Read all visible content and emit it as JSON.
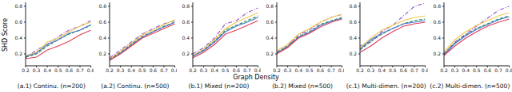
{
  "xlabel": "Graph Density",
  "ylabel": "SHD Score",
  "chart_data": [
    {
      "type": "line",
      "title": "(a.1) Continu. (n=200)",
      "x": [
        0.2,
        0.3,
        0.4,
        0.5,
        0.6,
        0.7,
        0.8
      ],
      "xlim": [
        0.2,
        0.8
      ],
      "xticks": [
        0.2,
        0.3,
        0.4,
        0.5,
        0.6,
        0.7,
        0.8
      ],
      "ylim": [
        0.05,
        0.85
      ],
      "yticks": [
        0.2,
        0.4,
        0.6,
        0.8
      ],
      "grid": false,
      "series": [
        {
          "color": "#9b59d0",
          "line_style": "dashdot",
          "values": [
            0.15,
            0.25,
            0.32,
            0.42,
            0.5,
            0.55,
            0.62
          ]
        },
        {
          "color": "#f2c94c",
          "line_style": "solid",
          "values": [
            0.18,
            0.22,
            0.35,
            0.4,
            0.48,
            0.55,
            0.6
          ]
        },
        {
          "color": "#2e8b57",
          "line_style": "dashed",
          "values": [
            0.16,
            0.2,
            0.3,
            0.38,
            0.45,
            0.5,
            0.56
          ]
        },
        {
          "color": "#4a7bd0",
          "line_style": "solid",
          "values": [
            0.17,
            0.21,
            0.32,
            0.38,
            0.46,
            0.5,
            0.57
          ]
        },
        {
          "color": "#e0405a",
          "line_style": "solid",
          "values": [
            0.14,
            0.16,
            0.25,
            0.3,
            0.36,
            0.44,
            0.5
          ]
        }
      ]
    },
    {
      "type": "line",
      "title": "(a.2) Continu. (n=500)",
      "x": [
        0.2,
        0.3,
        0.4,
        0.5,
        0.6,
        0.7,
        0.8
      ],
      "xlim": [
        0.2,
        0.8
      ],
      "xticks": [
        0.2,
        0.3,
        0.4,
        0.5,
        0.6,
        0.7,
        0.8
      ],
      "ylim": [
        0.05,
        0.85
      ],
      "yticks": [
        0.2,
        0.4,
        0.6,
        0.8
      ],
      "grid": false,
      "series": [
        {
          "color": "#9b59d0",
          "line_style": "dashdot",
          "values": [
            0.15,
            0.25,
            0.35,
            0.45,
            0.52,
            0.58,
            0.62
          ]
        },
        {
          "color": "#f2c94c",
          "line_style": "solid",
          "values": [
            0.14,
            0.23,
            0.33,
            0.44,
            0.5,
            0.57,
            0.63
          ]
        },
        {
          "color": "#2e8b57",
          "line_style": "dashed",
          "values": [
            0.13,
            0.22,
            0.32,
            0.42,
            0.48,
            0.55,
            0.6
          ]
        },
        {
          "color": "#4a7bd0",
          "line_style": "solid",
          "values": [
            0.12,
            0.21,
            0.31,
            0.41,
            0.48,
            0.54,
            0.6
          ]
        },
        {
          "color": "#e0405a",
          "line_style": "solid",
          "values": [
            0.12,
            0.2,
            0.3,
            0.4,
            0.46,
            0.52,
            0.58
          ]
        }
      ]
    },
    {
      "type": "line",
      "title": "(b.1) Mixed (n=200)",
      "x": [
        0.2,
        0.3,
        0.4,
        0.5,
        0.6,
        0.7,
        0.8
      ],
      "xlim": [
        0.2,
        0.8
      ],
      "xticks": [
        0.2,
        0.3,
        0.4,
        0.5,
        0.6,
        0.7,
        0.8
      ],
      "ylim": [
        0.05,
        0.85
      ],
      "yticks": [
        0.2,
        0.4,
        0.6,
        0.8
      ],
      "grid": false,
      "series": [
        {
          "color": "#9b59d0",
          "line_style": "dashdot",
          "values": [
            0.2,
            0.28,
            0.4,
            0.58,
            0.62,
            0.72,
            0.78
          ]
        },
        {
          "color": "#f2c94c",
          "line_style": "solid",
          "values": [
            0.18,
            0.26,
            0.38,
            0.52,
            0.6,
            0.66,
            0.72
          ]
        },
        {
          "color": "#2e8b57",
          "line_style": "dashed",
          "values": [
            0.17,
            0.25,
            0.36,
            0.5,
            0.56,
            0.62,
            0.68
          ]
        },
        {
          "color": "#4a7bd0",
          "line_style": "solid",
          "values": [
            0.17,
            0.24,
            0.35,
            0.48,
            0.55,
            0.6,
            0.66
          ]
        },
        {
          "color": "#e0405a",
          "line_style": "solid",
          "values": [
            0.15,
            0.22,
            0.32,
            0.45,
            0.5,
            0.56,
            0.62
          ]
        }
      ]
    },
    {
      "type": "line",
      "title": "(b.2) Mixed (n=500)",
      "x": [
        0.2,
        0.3,
        0.4,
        0.5,
        0.6,
        0.7,
        0.8
      ],
      "xlim": [
        0.2,
        0.8
      ],
      "xticks": [
        0.2,
        0.3,
        0.4,
        0.5,
        0.6,
        0.7,
        0.8
      ],
      "ylim": [
        0.05,
        0.85
      ],
      "yticks": [
        0.2,
        0.4,
        0.6,
        0.8
      ],
      "grid": false,
      "series": [
        {
          "color": "#9b59d0",
          "line_style": "dashdot",
          "values": [
            0.22,
            0.3,
            0.44,
            0.5,
            0.6,
            0.66,
            0.7
          ]
        },
        {
          "color": "#f2c94c",
          "line_style": "solid",
          "values": [
            0.24,
            0.32,
            0.45,
            0.52,
            0.6,
            0.66,
            0.7
          ]
        },
        {
          "color": "#2e8b57",
          "line_style": "dashed",
          "values": [
            0.22,
            0.3,
            0.42,
            0.48,
            0.57,
            0.62,
            0.66
          ]
        },
        {
          "color": "#4a7bd0",
          "line_style": "solid",
          "values": [
            0.21,
            0.29,
            0.41,
            0.47,
            0.56,
            0.61,
            0.65
          ]
        },
        {
          "color": "#e0405a",
          "line_style": "solid",
          "values": [
            0.2,
            0.28,
            0.4,
            0.46,
            0.54,
            0.6,
            0.64
          ]
        }
      ]
    },
    {
      "type": "line",
      "title": "(c.1) Multi-dimen. (n=200)",
      "x": [
        0.2,
        0.3,
        0.4,
        0.5,
        0.6,
        0.7,
        0.8
      ],
      "xlim": [
        0.2,
        0.8
      ],
      "xticks": [
        0.2,
        0.3,
        0.4,
        0.5,
        0.6,
        0.7,
        0.8
      ],
      "ylim": [
        0.05,
        0.85
      ],
      "yticks": [
        0.2,
        0.4,
        0.6,
        0.8
      ],
      "grid": false,
      "series": [
        {
          "color": "#9b59d0",
          "line_style": "dashdot",
          "values": [
            0.3,
            0.35,
            0.48,
            0.56,
            0.68,
            0.8,
            0.84
          ]
        },
        {
          "color": "#f2c94c",
          "line_style": "solid",
          "values": [
            0.28,
            0.4,
            0.5,
            0.56,
            0.62,
            0.66,
            0.68
          ]
        },
        {
          "color": "#2e8b57",
          "line_style": "dashed",
          "values": [
            0.25,
            0.36,
            0.45,
            0.52,
            0.58,
            0.62,
            0.64
          ]
        },
        {
          "color": "#4a7bd0",
          "line_style": "solid",
          "values": [
            0.26,
            0.38,
            0.46,
            0.52,
            0.58,
            0.6,
            0.62
          ]
        },
        {
          "color": "#e0405a",
          "line_style": "solid",
          "values": [
            0.22,
            0.3,
            0.4,
            0.48,
            0.55,
            0.58,
            0.6
          ]
        }
      ]
    },
    {
      "type": "line",
      "title": "(c.2) Multi-dimen. (n=500)",
      "x": [
        0.2,
        0.3,
        0.4,
        0.5,
        0.6,
        0.7,
        0.8
      ],
      "xlim": [
        0.2,
        0.8
      ],
      "xticks": [
        0.2,
        0.3,
        0.4,
        0.5,
        0.6,
        0.7,
        0.8
      ],
      "ylim": [
        0.05,
        0.85
      ],
      "yticks": [
        0.2,
        0.4,
        0.6,
        0.8
      ],
      "grid": false,
      "series": [
        {
          "color": "#9b59d0",
          "line_style": "dashdot",
          "values": [
            0.2,
            0.35,
            0.45,
            0.55,
            0.65,
            0.75,
            0.8
          ]
        },
        {
          "color": "#f2c94c",
          "line_style": "solid",
          "values": [
            0.22,
            0.38,
            0.48,
            0.56,
            0.62,
            0.68,
            0.72
          ]
        },
        {
          "color": "#2e8b57",
          "line_style": "dashed",
          "values": [
            0.2,
            0.34,
            0.44,
            0.52,
            0.58,
            0.64,
            0.68
          ]
        },
        {
          "color": "#4a7bd0",
          "line_style": "solid",
          "values": [
            0.19,
            0.33,
            0.43,
            0.51,
            0.57,
            0.63,
            0.67
          ]
        },
        {
          "color": "#e0405a",
          "line_style": "solid",
          "values": [
            0.18,
            0.3,
            0.4,
            0.48,
            0.55,
            0.6,
            0.64
          ]
        }
      ]
    }
  ]
}
